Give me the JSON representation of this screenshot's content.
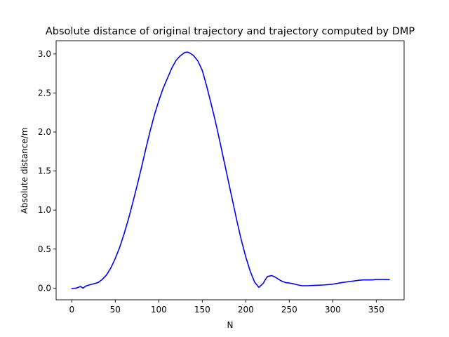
{
  "chart_data": {
    "type": "line",
    "title": "Absolute distance of original trajectory and trajectory computed by DMP",
    "xlabel": "N",
    "ylabel": "Absolute distance/m",
    "xlim": [
      -18,
      382
    ],
    "ylim": [
      -0.15,
      3.17
    ],
    "xticks": [
      0,
      50,
      100,
      150,
      200,
      250,
      300,
      350
    ],
    "xtick_labels": [
      "0",
      "50",
      "100",
      "150",
      "200",
      "250",
      "300",
      "350"
    ],
    "yticks": [
      0.0,
      0.5,
      1.0,
      1.5,
      2.0,
      2.5,
      3.0
    ],
    "ytick_labels": [
      "0.0",
      "0.5",
      "1.0",
      "1.5",
      "2.0",
      "2.5",
      "3.0"
    ],
    "grid": false,
    "legend": "none",
    "series": [
      {
        "color": "#0000ff",
        "x": [
          0,
          5,
          10,
          13,
          16,
          20,
          25,
          30,
          35,
          40,
          45,
          50,
          55,
          60,
          65,
          70,
          75,
          80,
          85,
          90,
          95,
          100,
          105,
          110,
          115,
          120,
          125,
          130,
          133,
          136,
          140,
          145,
          150,
          155,
          160,
          165,
          170,
          175,
          180,
          185,
          190,
          195,
          200,
          205,
          210,
          215,
          220,
          222,
          225,
          230,
          234,
          238,
          242,
          246,
          250,
          255,
          260,
          265,
          270,
          280,
          290,
          300,
          305,
          310,
          320,
          330,
          335,
          340,
          345,
          350,
          355,
          360,
          365
        ],
        "y": [
          -0.005,
          0.0,
          0.02,
          0.0,
          0.025,
          0.04,
          0.055,
          0.07,
          0.11,
          0.17,
          0.26,
          0.38,
          0.52,
          0.69,
          0.88,
          1.09,
          1.31,
          1.54,
          1.78,
          2.01,
          2.22,
          2.4,
          2.56,
          2.69,
          2.82,
          2.92,
          2.98,
          3.02,
          3.025,
          3.01,
          2.98,
          2.91,
          2.79,
          2.59,
          2.37,
          2.14,
          1.89,
          1.63,
          1.37,
          1.11,
          0.85,
          0.61,
          0.4,
          0.22,
          0.08,
          0.01,
          0.06,
          0.1,
          0.15,
          0.16,
          0.14,
          0.11,
          0.085,
          0.07,
          0.065,
          0.055,
          0.04,
          0.03,
          0.03,
          0.035,
          0.04,
          0.05,
          0.06,
          0.07,
          0.085,
          0.1,
          0.105,
          0.105,
          0.105,
          0.11,
          0.11,
          0.11,
          0.108
        ]
      }
    ]
  }
}
